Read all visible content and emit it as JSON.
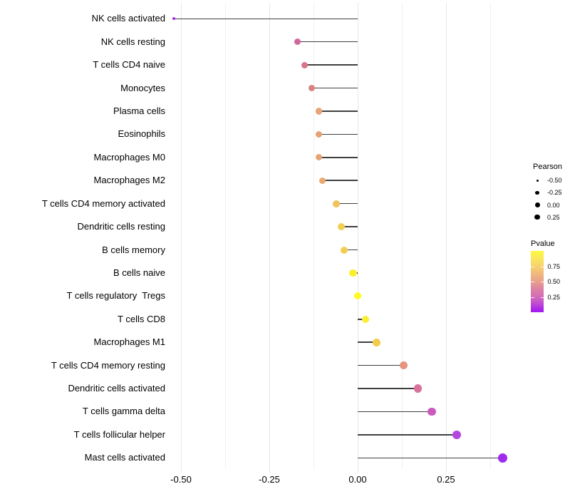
{
  "chart_data": {
    "type": "scatter",
    "subtype": "lollipop",
    "orientation": "horizontal",
    "title": "",
    "xlabel": "",
    "ylabel": "",
    "xlim": [
      -0.57,
      0.44
    ],
    "grid": "vertical-only",
    "x_major_ticks": [
      {
        "label": "-0.50",
        "value": -0.5
      },
      {
        "label": "-0.25",
        "value": -0.25
      },
      {
        "label": "0.00",
        "value": 0.0
      },
      {
        "label": "0.25",
        "value": 0.25
      }
    ],
    "x_minor_gridlines": [
      -0.375,
      -0.125,
      0.125,
      0.375
    ],
    "points": [
      {
        "label": "NK cells activated",
        "pearson": -0.52,
        "color": "#A32BE3",
        "diameter": 4.0
      },
      {
        "label": "NK cells resting",
        "pearson": -0.17,
        "color": "#D2669E",
        "diameter": 9.0
      },
      {
        "label": "T cells CD4 naive",
        "pearson": -0.15,
        "color": "#DB748B",
        "diameter": 9.0
      },
      {
        "label": "Monocytes",
        "pearson": -0.13,
        "color": "#DA8282",
        "diameter": 9.0
      },
      {
        "label": "Plasma cells",
        "pearson": -0.11,
        "color": "#E7A577",
        "diameter": 9.2
      },
      {
        "label": "Eosinophils",
        "pearson": -0.11,
        "color": "#E6A275",
        "diameter": 9.2
      },
      {
        "label": "Macrophages M0",
        "pearson": -0.11,
        "color": "#E7A374",
        "diameter": 9.2
      },
      {
        "label": "Macrophages M2",
        "pearson": -0.1,
        "color": "#E9A96F",
        "diameter": 9.4
      },
      {
        "label": "T cells CD4 memory activated",
        "pearson": -0.06,
        "color": "#EFC45C",
        "diameter": 9.8
      },
      {
        "label": "Dendritic cells resting",
        "pearson": -0.046,
        "color": "#F3CE53",
        "diameter": 10.0
      },
      {
        "label": "B cells memory",
        "pearson": -0.039,
        "color": "#F3CD53",
        "diameter": 10.0
      },
      {
        "label": "B cells naive",
        "pearson": -0.013,
        "color": "#FAF02D",
        "diameter": 10.2
      },
      {
        "label": "T cells regulatory  Tregs",
        "pearson": 0.0,
        "color": "#FDFB20",
        "diameter": 10.3
      },
      {
        "label": "T cells CD8",
        "pearson": 0.022,
        "color": "#F9EE36",
        "diameter": 10.4
      },
      {
        "label": "Macrophages M1",
        "pearson": 0.053,
        "color": "#F2CB4E",
        "diameter": 10.8
      },
      {
        "label": "T cells CD4 memory resting",
        "pearson": 0.13,
        "color": "#E6937F",
        "diameter": 11.2
      },
      {
        "label": "Dendritic cells activated",
        "pearson": 0.17,
        "color": "#D9739E",
        "diameter": 11.5
      },
      {
        "label": "T cells gamma delta",
        "pearson": 0.21,
        "color": "#CC5ABD",
        "diameter": 11.8
      },
      {
        "label": "T cells follicular helper",
        "pearson": 0.28,
        "color": "#B644E0",
        "diameter": 12.3
      },
      {
        "label": "Mast cells activated",
        "pearson": 0.41,
        "color": "#9F2BEF",
        "diameter": 13.3
      }
    ],
    "legend": {
      "size": {
        "title": "Pearson",
        "entries": [
          {
            "label": "-0.50",
            "diameter": 3.0
          },
          {
            "label": "-0.25",
            "diameter": 5.7
          },
          {
            "label": "0.00",
            "diameter": 7.0
          },
          {
            "label": "0.25",
            "diameter": 7.7
          }
        ]
      },
      "color": {
        "title": "Pvalue",
        "ticks": [
          {
            "label": "0.75",
            "frac_from_top": 0.25
          },
          {
            "label": "0.50",
            "frac_from_top": 0.5
          },
          {
            "label": "0.25",
            "frac_from_top": 0.75
          }
        ],
        "gradient_top_to_bottom": [
          {
            "color": "#FCF93B",
            "pos": 0
          },
          {
            "color": "#FAE75C",
            "pos": 12
          },
          {
            "color": "#F6D16D",
            "pos": 25
          },
          {
            "color": "#F0B77E",
            "pos": 38
          },
          {
            "color": "#E8A08C",
            "pos": 50
          },
          {
            "color": "#DD82A3",
            "pos": 62
          },
          {
            "color": "#D26BB6",
            "pos": 75
          },
          {
            "color": "#C04FD0",
            "pos": 85
          },
          {
            "color": "#AC2BE8",
            "pos": 94
          },
          {
            "color": "#A416F2",
            "pos": 100
          }
        ]
      }
    },
    "colors": {
      "stem": "#3F3F3F",
      "gridline_major": "#E7E7E7",
      "gridline_minor": "#F1F1F1",
      "axis_text": "#000000",
      "background": "#FFFFFF",
      "legend_dot": "#000000"
    }
  }
}
